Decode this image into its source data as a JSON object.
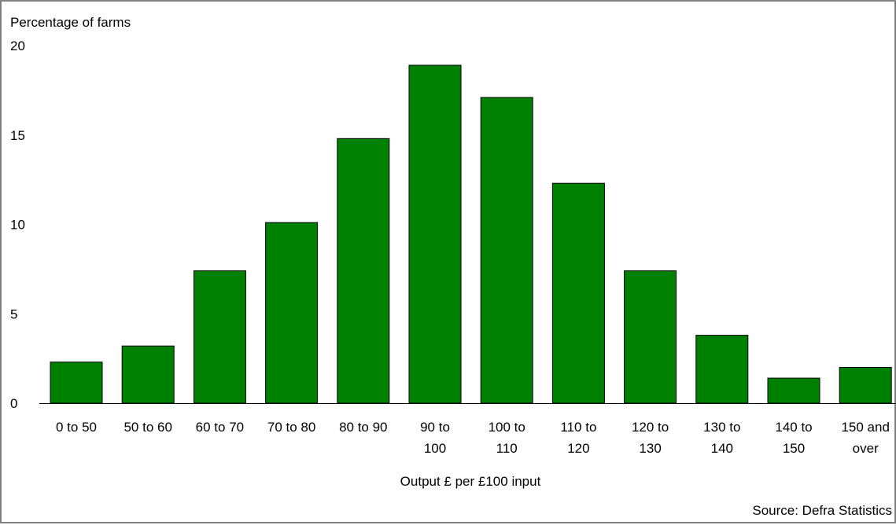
{
  "chart_data": {
    "type": "bar",
    "ylabel": "Percentage of farms",
    "xlabel": "Output £ per £100 input",
    "source": "Source: Defra Statistics",
    "ylim": [
      0,
      20
    ],
    "yticks": [
      "0",
      "5",
      "10",
      "15",
      "20"
    ],
    "categories": [
      [
        "0 to 50"
      ],
      [
        "50 to 60"
      ],
      [
        "60 to 70"
      ],
      [
        "70 to 80"
      ],
      [
        "80 to 90"
      ],
      [
        "90 to",
        "100"
      ],
      [
        "100 to",
        "110"
      ],
      [
        "110 to",
        "120"
      ],
      [
        "120 to",
        "130"
      ],
      [
        "130 to",
        "140"
      ],
      [
        "140 to",
        "150"
      ],
      [
        "150 and",
        "over"
      ]
    ],
    "values": [
      2.3,
      3.2,
      7.4,
      10.1,
      14.8,
      18.9,
      17.1,
      12.3,
      7.4,
      3.8,
      1.4,
      2.0
    ],
    "bar_color": "#008000",
    "grid": false
  }
}
